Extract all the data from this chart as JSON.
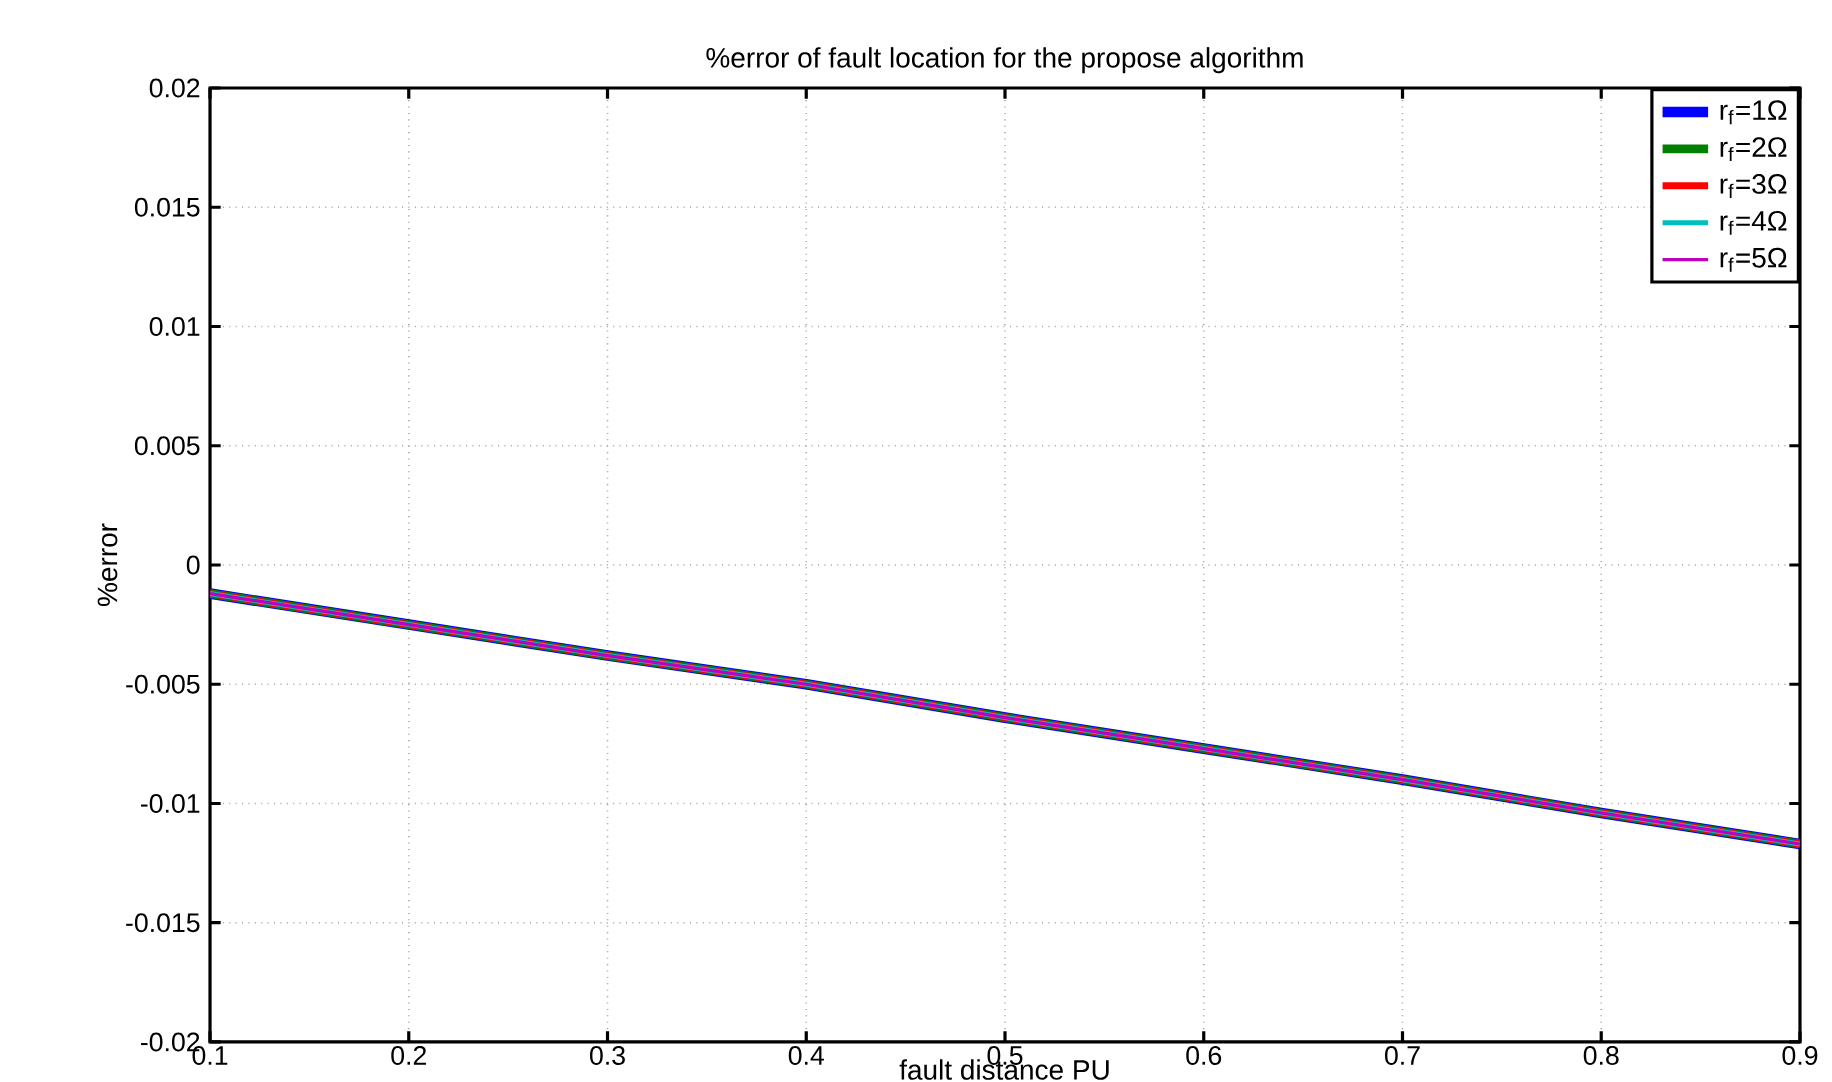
{
  "chart_data": {
    "type": "line",
    "title": "%error of fault location for the propose algorithm",
    "xlabel": "fault distance PU",
    "ylabel": "%error",
    "x": [
      0.1,
      0.2,
      0.3,
      0.4,
      0.5,
      0.6,
      0.7,
      0.8,
      0.9
    ],
    "series": [
      {
        "name": "r$_{f}$=1Ω",
        "color": "#0000ff",
        "values": [
          -0.0012,
          -0.0025,
          -0.0038,
          -0.005,
          -0.0064,
          -0.0077,
          -0.009,
          -0.0104,
          -0.0117
        ]
      },
      {
        "name": "r$_{f}$=2Ω",
        "color": "#008000",
        "values": [
          -0.0012,
          -0.0025,
          -0.0038,
          -0.005,
          -0.0064,
          -0.0077,
          -0.009,
          -0.0104,
          -0.0117
        ]
      },
      {
        "name": "r$_{f}$=3Ω",
        "color": "#ff0000",
        "values": [
          -0.0012,
          -0.0025,
          -0.0038,
          -0.005,
          -0.0064,
          -0.0077,
          -0.009,
          -0.0104,
          -0.0117
        ]
      },
      {
        "name": "r$_{f}$=4Ω",
        "color": "#00bfbf",
        "values": [
          -0.0012,
          -0.0025,
          -0.0038,
          -0.005,
          -0.0064,
          -0.0077,
          -0.009,
          -0.0104,
          -0.0117
        ]
      },
      {
        "name": "r$_{f}$=5Ω",
        "color": "#bf00bf",
        "values": [
          -0.0012,
          -0.0025,
          -0.0038,
          -0.005,
          -0.0064,
          -0.0077,
          -0.009,
          -0.0104,
          -0.0117
        ]
      }
    ],
    "xlim": [
      0.1,
      0.9
    ],
    "xticks": [
      0.1,
      0.2,
      0.3,
      0.4,
      0.5,
      0.6,
      0.7,
      0.8,
      0.9
    ],
    "ylim": [
      -0.02,
      0.02
    ],
    "yticks": [
      -0.02,
      -0.015,
      -0.01,
      -0.005,
      0,
      0.005,
      0.01,
      0.015,
      0.02
    ],
    "grid": true,
    "legend": "top right",
    "marker": "none",
    "line_style": "solid"
  }
}
